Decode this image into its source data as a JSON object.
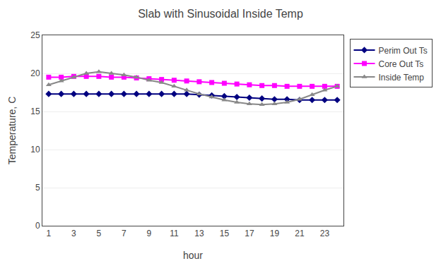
{
  "chart_data": {
    "type": "line",
    "title": "Slab with Sinusoidal Inside Temp",
    "xlabel": "hour",
    "ylabel": "Temperature, C",
    "x": [
      1,
      2,
      3,
      4,
      5,
      6,
      7,
      8,
      9,
      10,
      11,
      12,
      13,
      14,
      15,
      16,
      17,
      18,
      19,
      20,
      21,
      22,
      23,
      24
    ],
    "series": [
      {
        "name": "Perim Out Ts",
        "color": "#000080",
        "marker": "diamond",
        "values": [
          17.3,
          17.3,
          17.3,
          17.3,
          17.3,
          17.3,
          17.3,
          17.3,
          17.3,
          17.3,
          17.3,
          17.3,
          17.2,
          17.1,
          17.0,
          16.9,
          16.8,
          16.7,
          16.6,
          16.6,
          16.5,
          16.5,
          16.5,
          16.5
        ]
      },
      {
        "name": "Core Out Ts",
        "color": "#FF00FF",
        "marker": "square",
        "values": [
          19.5,
          19.5,
          19.6,
          19.6,
          19.6,
          19.5,
          19.5,
          19.4,
          19.3,
          19.2,
          19.1,
          19.0,
          18.9,
          18.8,
          18.7,
          18.6,
          18.5,
          18.4,
          18.4,
          18.3,
          18.3,
          18.3,
          18.3,
          18.3
        ]
      },
      {
        "name": "Inside Temp",
        "color": "#888888",
        "marker": "triangle",
        "values": [
          18.5,
          19.0,
          19.5,
          20.0,
          20.2,
          20.0,
          19.8,
          19.5,
          19.1,
          18.8,
          18.3,
          17.8,
          17.3,
          16.9,
          16.5,
          16.2,
          16.0,
          15.9,
          16.0,
          16.2,
          16.6,
          17.2,
          17.8,
          18.3
        ]
      }
    ],
    "xlim": [
      0.5,
      24.5
    ],
    "xticks": [
      1,
      3,
      5,
      7,
      9,
      11,
      13,
      15,
      17,
      19,
      21,
      23
    ],
    "ylim": [
      0,
      25
    ],
    "yticks": [
      0,
      5,
      10,
      15,
      20,
      25
    ],
    "grid": true,
    "legend": "right"
  }
}
